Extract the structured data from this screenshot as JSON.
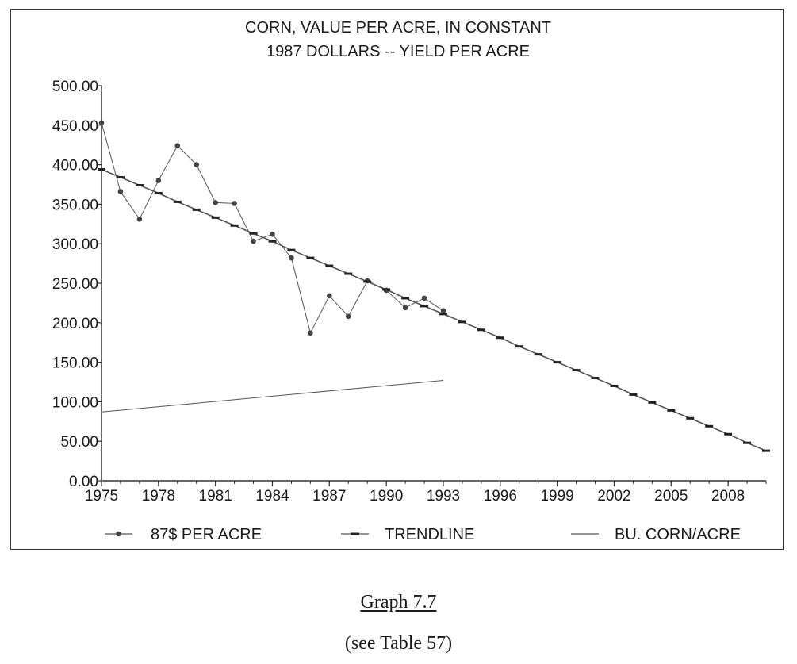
{
  "caption": {
    "title": "Graph 7.7",
    "note": "(see Table 57)"
  },
  "chart_data": {
    "type": "line",
    "title_lines": [
      "CORN, VALUE PER ACRE, IN CONSTANT",
      "1987 DOLLARS --  YIELD PER ACRE"
    ],
    "xlabel": "",
    "ylabel": "",
    "xlim": [
      1975,
      2010
    ],
    "ylim": [
      0,
      500
    ],
    "x_ticks": [
      1975,
      1978,
      1981,
      1984,
      1987,
      1990,
      1993,
      1996,
      1999,
      2002,
      2005,
      2008
    ],
    "x_tick_labels": [
      "1975",
      "1978",
      "1981",
      "1984",
      "1987",
      "1990",
      "1993",
      "1996",
      "1999",
      "2002",
      "2005",
      "2008"
    ],
    "y_ticks": [
      0,
      50,
      100,
      150,
      200,
      250,
      300,
      350,
      400,
      450,
      500
    ],
    "y_tick_labels": [
      "0.00",
      "50.00",
      "100.00",
      "150.00",
      "200.00",
      "250.00",
      "300.00",
      "350.00",
      "400.00",
      "450.00",
      "500.00"
    ],
    "grid": false,
    "legend_position": "bottom",
    "colors": {
      "line": "#555555",
      "marker": "#444444",
      "axis": "#333333"
    },
    "series": [
      {
        "name": "87$ PER ACRE",
        "marker": "circle",
        "x": [
          1975,
          1976,
          1977,
          1978,
          1979,
          1980,
          1981,
          1982,
          1983,
          1984,
          1985,
          1986,
          1987,
          1988,
          1989,
          1990,
          1991,
          1992,
          1993
        ],
        "y": [
          453,
          366,
          331,
          380,
          424,
          400,
          352,
          351,
          303,
          312,
          282,
          187,
          234,
          208,
          253,
          241,
          219,
          231,
          215
        ]
      },
      {
        "name": "TRENDLINE",
        "marker": "dash",
        "x": [
          1975,
          1976,
          1977,
          1978,
          1979,
          1980,
          1981,
          1982,
          1983,
          1984,
          1985,
          1986,
          1987,
          1988,
          1989,
          1990,
          1991,
          1992,
          1993,
          1994,
          1995,
          1996,
          1997,
          1998,
          1999,
          2000,
          2001,
          2002,
          2003,
          2004,
          2005,
          2006,
          2007,
          2008,
          2009,
          2010
        ],
        "y": [
          394,
          384,
          374,
          364,
          353,
          343,
          333,
          323,
          313,
          303,
          292,
          282,
          272,
          262,
          252,
          242,
          231,
          221,
          211,
          201,
          191,
          181,
          170,
          160,
          150,
          140,
          130,
          120,
          109,
          99,
          89,
          79,
          69,
          59,
          48,
          38
        ]
      },
      {
        "name": "BU. CORN/ACRE",
        "marker": "none",
        "x": [
          1975,
          1993
        ],
        "y": [
          87,
          127
        ]
      }
    ]
  }
}
